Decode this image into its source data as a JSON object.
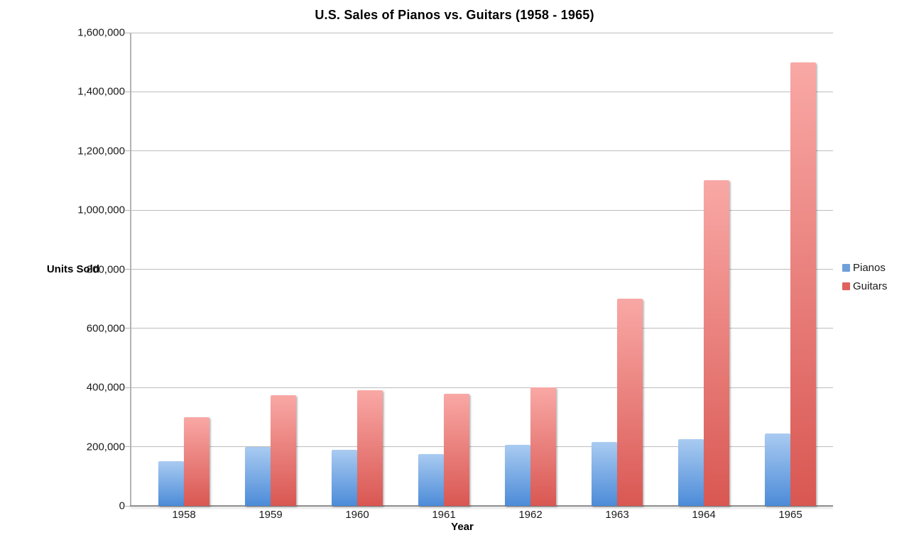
{
  "chart_data": {
    "type": "bar",
    "title": "U.S. Sales of Pianos vs. Guitars (1958 - 1965)",
    "xlabel": "Year",
    "ylabel": "Units Sold",
    "categories": [
      "1958",
      "1959",
      "1960",
      "1961",
      "1962",
      "1963",
      "1964",
      "1965"
    ],
    "series": [
      {
        "name": "Pianos",
        "values": [
          150000,
          200000,
          190000,
          175000,
          207000,
          215000,
          225000,
          245000
        ],
        "color_top": "#a9cbf1",
        "color_bottom": "#4c8bd8",
        "legend_color": "#6fa0d9"
      },
      {
        "name": "Guitars",
        "values": [
          300000,
          375000,
          390000,
          380000,
          400000,
          700000,
          1100000,
          1500000
        ],
        "color_top": "#f9a8a5",
        "color_bottom": "#d95752",
        "legend_color": "#e0625c"
      }
    ],
    "ylim": [
      0,
      1600000
    ],
    "y_tick_labels": [
      "0",
      "200,000",
      "400,000",
      "600,000",
      "800,000",
      "1,000,000",
      "1,200,000",
      "1,400,000",
      "1,600,000"
    ],
    "grid": true,
    "legend_position": "right"
  }
}
